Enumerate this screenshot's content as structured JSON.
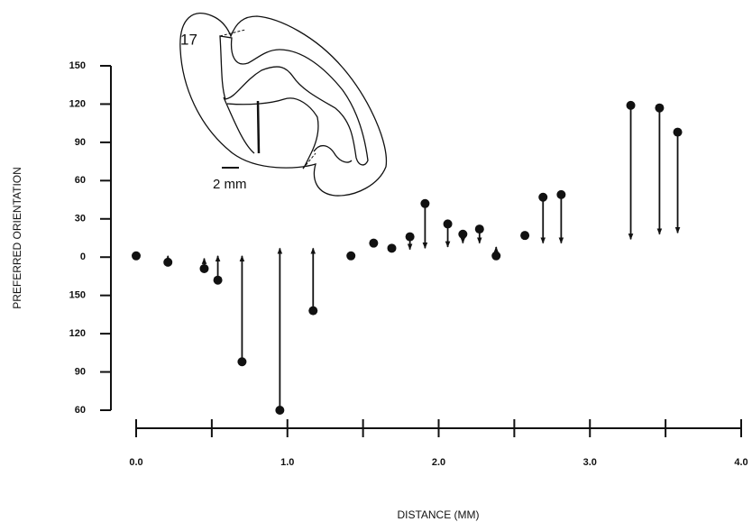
{
  "chart_data": {
    "type": "arrow-scatter",
    "ylabel": "PREFERRED ORIENTATION",
    "xlabel": "DISTANCE (MM)",
    "xlim": [
      0,
      4
    ],
    "xticks": [
      {
        "value": 0,
        "label": "0.0"
      },
      {
        "value": 1,
        "label": "1.0"
      },
      {
        "value": 2,
        "label": "2.0"
      },
      {
        "value": 3,
        "label": "3.0"
      },
      {
        "value": 4,
        "label": "4.0"
      }
    ],
    "xminor_ticks": [
      0.5,
      1.5,
      2.5,
      3.5
    ],
    "ylim": [
      -120,
      150
    ],
    "yticks": [
      150,
      120,
      90,
      60,
      30,
      0,
      {
        "value": -30,
        "label": "150"
      },
      {
        "value": -60,
        "label": "120"
      },
      {
        "value": -90,
        "label": "90"
      },
      {
        "value": -120,
        "label": "60"
      }
    ],
    "color": "#111111",
    "x": [
      0,
      0.21,
      0.45,
      0.54,
      0.7,
      0.95,
      1.17,
      1.42,
      1.57,
      1.69,
      1.81,
      1.91,
      2.06,
      2.16,
      2.27,
      2.38,
      2.57,
      2.69,
      2.81,
      3.27,
      3.46,
      3.58
    ],
    "values": [
      1,
      -4,
      -9,
      -18,
      -82,
      -120,
      -42,
      1,
      11,
      7,
      16,
      42,
      26,
      18,
      22,
      1,
      17,
      47,
      49,
      119,
      117,
      98
    ],
    "arrow_to": [
      null,
      1,
      -1,
      1,
      1,
      7,
      7,
      null,
      null,
      null,
      6,
      7,
      8,
      11,
      11,
      8,
      null,
      11,
      11,
      14,
      18,
      19
    ],
    "inset": {
      "area_label": "17",
      "scale_label": "2 mm"
    }
  }
}
